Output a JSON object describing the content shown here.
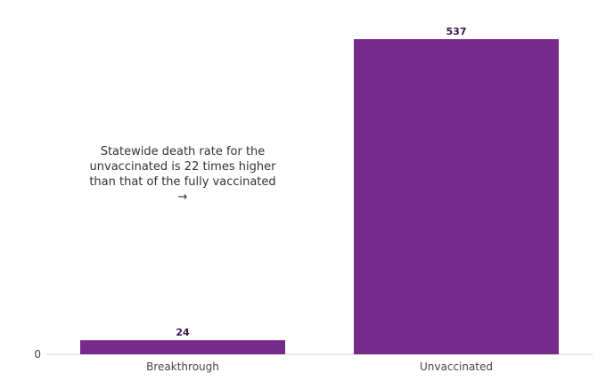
{
  "chart_data": {
    "type": "bar",
    "categories": [
      "Breakthrough",
      "Unvaccinated"
    ],
    "values": [
      24,
      537
    ],
    "ylim": [
      0,
      537
    ],
    "y_ticks": [
      0
    ],
    "grid": false,
    "bar_color": "#762a8a",
    "label_color": "#3d1452",
    "annotation": "Statewide death rate for the unvaccinated is 22 times higher than that of the fully vaccinated →"
  }
}
